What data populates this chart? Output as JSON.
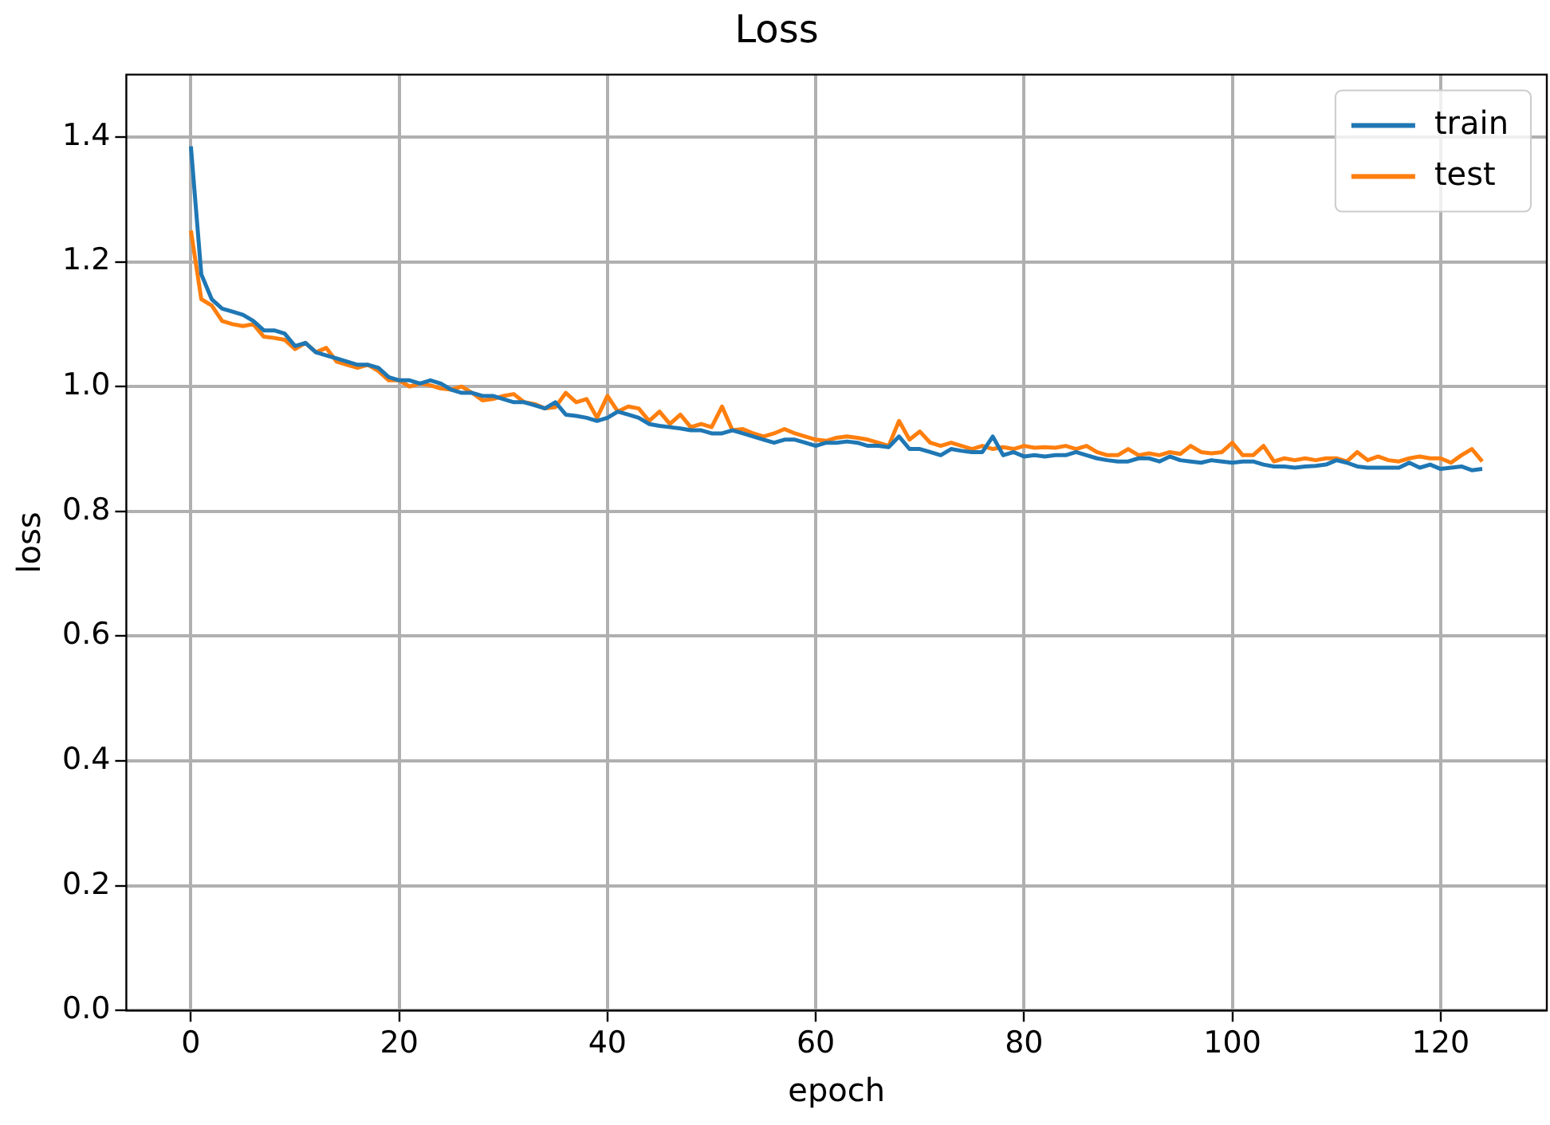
{
  "chart_data": {
    "type": "line",
    "title": "Loss",
    "xlabel": "epoch",
    "ylabel": "loss",
    "x": [
      0,
      1,
      2,
      3,
      4,
      5,
      6,
      7,
      8,
      9,
      10,
      11,
      12,
      13,
      14,
      15,
      16,
      17,
      18,
      19,
      20,
      21,
      22,
      23,
      24,
      25,
      26,
      27,
      28,
      29,
      30,
      31,
      32,
      33,
      34,
      35,
      36,
      37,
      38,
      39,
      40,
      41,
      42,
      43,
      44,
      45,
      46,
      47,
      48,
      49,
      50,
      51,
      52,
      53,
      54,
      55,
      56,
      57,
      58,
      59,
      60,
      61,
      62,
      63,
      64,
      65,
      66,
      67,
      68,
      69,
      70,
      71,
      72,
      73,
      74,
      75,
      76,
      77,
      78,
      79,
      80,
      81,
      82,
      83,
      84,
      85,
      86,
      87,
      88,
      89,
      90,
      91,
      92,
      93,
      94,
      95,
      96,
      97,
      98,
      99,
      100,
      101,
      102,
      103,
      104,
      105,
      106,
      107,
      108,
      109,
      110,
      111,
      112,
      113,
      114,
      115,
      116,
      117,
      118,
      119,
      120,
      121,
      122,
      123,
      124
    ],
    "series": [
      {
        "name": "train",
        "color": "#1f77b4",
        "values": [
          1.385,
          1.18,
          1.14,
          1.125,
          1.12,
          1.115,
          1.105,
          1.09,
          1.09,
          1.085,
          1.065,
          1.07,
          1.055,
          1.05,
          1.045,
          1.04,
          1.035,
          1.035,
          1.03,
          1.015,
          1.01,
          1.01,
          1.005,
          1.01,
          1.005,
          0.995,
          0.99,
          0.99,
          0.985,
          0.985,
          0.98,
          0.975,
          0.975,
          0.97,
          0.965,
          0.975,
          0.955,
          0.953,
          0.95,
          0.945,
          0.95,
          0.96,
          0.955,
          0.95,
          0.94,
          0.937,
          0.935,
          0.933,
          0.93,
          0.93,
          0.925,
          0.925,
          0.93,
          0.925,
          0.92,
          0.915,
          0.91,
          0.915,
          0.915,
          0.91,
          0.905,
          0.91,
          0.91,
          0.912,
          0.91,
          0.905,
          0.905,
          0.903,
          0.92,
          0.9,
          0.9,
          0.895,
          0.89,
          0.9,
          0.897,
          0.895,
          0.895,
          0.92,
          0.89,
          0.895,
          0.888,
          0.89,
          0.888,
          0.89,
          0.89,
          0.895,
          0.89,
          0.885,
          0.882,
          0.88,
          0.88,
          0.885,
          0.885,
          0.88,
          0.888,
          0.882,
          0.88,
          0.878,
          0.882,
          0.88,
          0.878,
          0.88,
          0.88,
          0.875,
          0.872,
          0.872,
          0.87,
          0.872,
          0.873,
          0.875,
          0.882,
          0.878,
          0.872,
          0.87,
          0.87,
          0.87,
          0.87,
          0.878,
          0.87,
          0.875,
          0.868,
          0.87,
          0.872,
          0.866,
          0.868
        ]
      },
      {
        "name": "test",
        "color": "#ff7f0e",
        "values": [
          1.25,
          1.14,
          1.13,
          1.105,
          1.1,
          1.097,
          1.1,
          1.08,
          1.078,
          1.075,
          1.06,
          1.07,
          1.055,
          1.062,
          1.04,
          1.035,
          1.03,
          1.035,
          1.025,
          1.01,
          1.01,
          1.0,
          1.005,
          1.002,
          0.997,
          0.995,
          1.0,
          0.99,
          0.978,
          0.98,
          0.985,
          0.988,
          0.975,
          0.972,
          0.965,
          0.967,
          0.99,
          0.975,
          0.98,
          0.95,
          0.985,
          0.96,
          0.968,
          0.965,
          0.945,
          0.96,
          0.94,
          0.955,
          0.935,
          0.94,
          0.935,
          0.968,
          0.93,
          0.932,
          0.925,
          0.92,
          0.925,
          0.932,
          0.925,
          0.92,
          0.915,
          0.913,
          0.918,
          0.92,
          0.918,
          0.915,
          0.91,
          0.905,
          0.945,
          0.915,
          0.928,
          0.91,
          0.905,
          0.91,
          0.905,
          0.9,
          0.905,
          0.9,
          0.903,
          0.9,
          0.905,
          0.902,
          0.903,
          0.902,
          0.905,
          0.9,
          0.905,
          0.895,
          0.89,
          0.89,
          0.9,
          0.89,
          0.893,
          0.89,
          0.895,
          0.892,
          0.905,
          0.895,
          0.893,
          0.895,
          0.91,
          0.89,
          0.89,
          0.905,
          0.88,
          0.885,
          0.882,
          0.885,
          0.882,
          0.885,
          0.885,
          0.88,
          0.895,
          0.882,
          0.888,
          0.882,
          0.88,
          0.885,
          0.888,
          0.885,
          0.885,
          0.878,
          0.89,
          0.9,
          0.88
        ]
      }
    ],
    "xlim": [
      -6.2,
      130.2
    ],
    "xticks": [
      0,
      20,
      40,
      60,
      80,
      100,
      120
    ],
    "ylim": [
      0,
      1.5
    ],
    "yticks": [
      {
        "value": 0,
        "label": "0.0"
      },
      {
        "value": 0.2,
        "label": "0.2"
      },
      {
        "value": 0.4,
        "label": "0.4"
      },
      {
        "value": 0.6,
        "label": "0.6"
      },
      {
        "value": 0.8,
        "label": "0.8"
      },
      {
        "value": 1.0,
        "label": "1.0"
      },
      {
        "value": 1.2,
        "label": "1.2"
      },
      {
        "value": 1.4,
        "label": "1.4"
      }
    ],
    "grid": true,
    "legend": "top right",
    "line_style": "solid",
    "marker": "none"
  }
}
